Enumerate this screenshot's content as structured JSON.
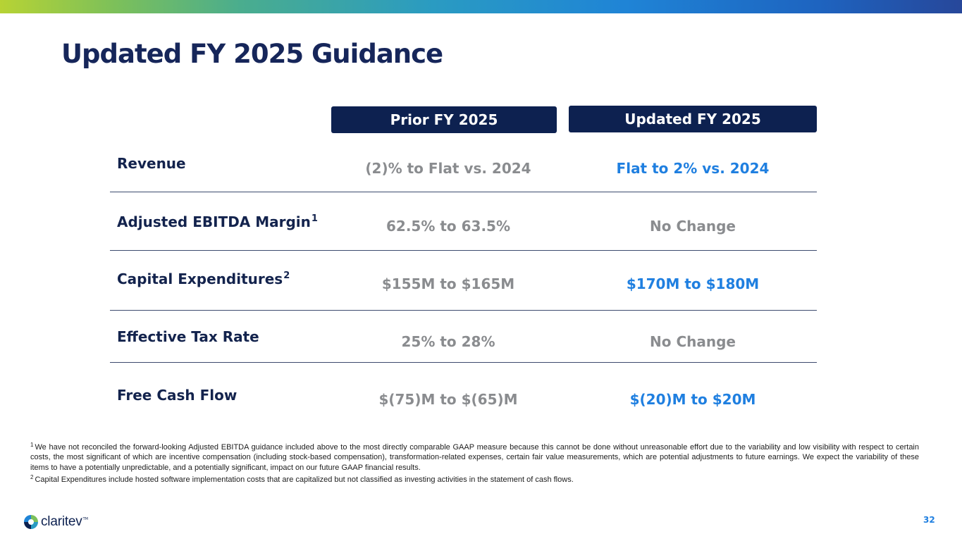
{
  "colors": {
    "navy": "#0d2150",
    "title": "#16265a",
    "grey": "#8a8c8f",
    "blue": "#1f7fe0"
  },
  "slide": {
    "title": "Updated FY 2025 Guidance",
    "page_number": "32"
  },
  "table": {
    "headers": {
      "prior": "Prior FY 2025",
      "updated": "Updated FY 2025"
    },
    "rows": [
      {
        "label": "Revenue",
        "sup": "",
        "prior": "(2)% to Flat vs. 2024",
        "updated": "Flat to 2% vs. 2024",
        "updated_color": "#1f7fe0"
      },
      {
        "label": "Adjusted EBITDA Margin",
        "sup": "1",
        "prior": "62.5% to 63.5%",
        "updated": "No Change",
        "updated_color": "#8a8c8f"
      },
      {
        "label": "Capital Expenditures",
        "sup": "2",
        "prior": "$155M to $165M",
        "updated": "$170M to $180M",
        "updated_color": "#1f7fe0"
      },
      {
        "label": "Effective Tax Rate",
        "sup": "",
        "prior": "25% to 28%",
        "updated": "No Change",
        "updated_color": "#8a8c8f"
      },
      {
        "label": "Free Cash Flow",
        "sup": "",
        "prior": "$(75)M to $(65)M",
        "updated": "$(20)M to $20M",
        "updated_color": "#1f7fe0"
      }
    ]
  },
  "footnotes": {
    "note1_marker": "1",
    "note1": "We have not reconciled the forward-looking Adjusted EBITDA guidance included above to the most directly comparable GAAP measure because this cannot be done without unreasonable effort due to the variability and low visibility with respect to certain costs, the most significant of which are incentive compensation (including stock-based compensation), transformation-related expenses, certain fair value measurements, which are potential adjustments to future earnings. We expect the variability of these items to have a potentially unpredictable, and a potentially significant, impact on our future GAAP financial results.",
    "note2_marker": "2",
    "note2": "Capital Expenditures include hosted software implementation costs that are capitalized but not classified as investing activities in the statement of cash flows."
  },
  "brand": {
    "logo_text": "claritev",
    "logo_tm": "TM",
    "logo_icon": "claritev-logo-icon"
  }
}
